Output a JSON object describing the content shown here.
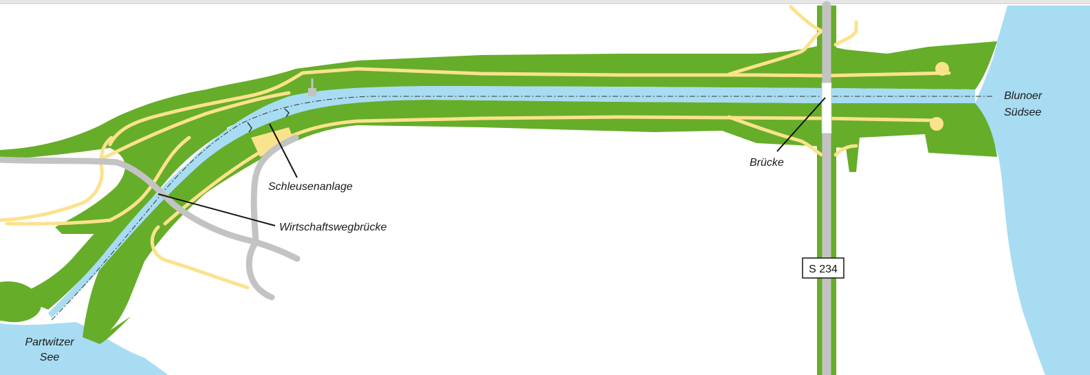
{
  "labels": {
    "lake_west": [
      "Partwitzer",
      "See"
    ],
    "lake_east": [
      "Blunoer",
      "Südsee"
    ],
    "lock": "Schleusenanlage",
    "farm_bridge": "Wirtschaftswegbrücke",
    "bridge": "Brücke",
    "road": "S 234"
  },
  "colors": {
    "water": "#a8dcf2",
    "embankment": "#66ad2a",
    "path": "#fbe28c",
    "road": "#c3c3c3",
    "leader": "#111111"
  }
}
